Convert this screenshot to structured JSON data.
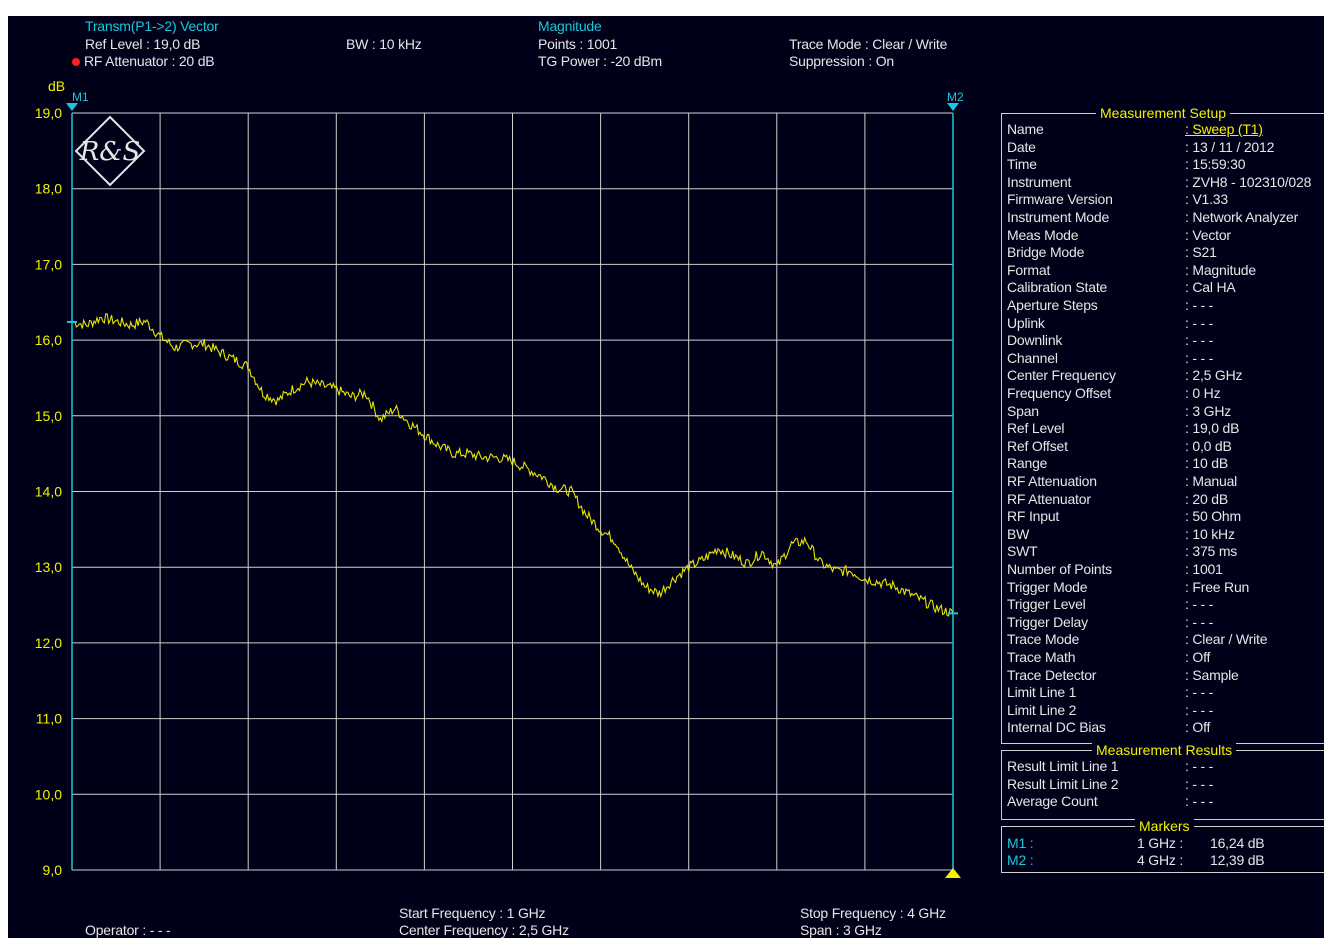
{
  "header": {
    "mode_title": "Transm(P1->2) Vector",
    "ref_level": "Ref Level      : 19,0 dB",
    "rf_attenuator": "RF Attenuator : 20   dB",
    "bw": "BW : 10 kHz",
    "format_title": "Magnitude",
    "points": "Points      : 1001",
    "tg_power": "TG Power : -20 dBm",
    "trace_mode": "Trace Mode : Clear / Write",
    "suppression": "Suppression : On"
  },
  "colors": {
    "background": "#000018",
    "grid": "#cfcfcf",
    "trace": "#e6e600",
    "marker": "#19c8dc",
    "accent_yellow": "#f2f200",
    "status_dot": "#ff1e1e"
  },
  "logo": {
    "name": "rohde-schwarz-logo",
    "text": "R&S"
  },
  "chart_data": {
    "type": "line",
    "ylabel": "dB",
    "ylim": [
      9.0,
      19.0
    ],
    "yticks": [
      9.0,
      10.0,
      11.0,
      12.0,
      13.0,
      14.0,
      15.0,
      16.0,
      17.0,
      18.0,
      19.0
    ],
    "ytick_labels": [
      "9,0",
      "10,0",
      "11,0",
      "12,0",
      "13,0",
      "14,0",
      "15,0",
      "16,0",
      "17,0",
      "18,0",
      "19,0"
    ],
    "xlim": [
      1.0,
      4.0
    ],
    "x_unit": "GHz",
    "grid": true,
    "series": [
      {
        "x": [
          1.0,
          1.05,
          1.1,
          1.15,
          1.2,
          1.25,
          1.3,
          1.35,
          1.4,
          1.45,
          1.5,
          1.55,
          1.6,
          1.65,
          1.7,
          1.75,
          1.8,
          1.85,
          1.9,
          1.95,
          2.0,
          2.05,
          2.1,
          2.15,
          2.2,
          2.25,
          2.3,
          2.35,
          2.4,
          2.45,
          2.5,
          2.55,
          2.6,
          2.65,
          2.7,
          2.75,
          2.8,
          2.85,
          2.9,
          2.95,
          3.0,
          3.05,
          3.1,
          3.15,
          3.2,
          3.25,
          3.3,
          3.35,
          3.4,
          3.45,
          3.5,
          3.55,
          3.6,
          3.65,
          3.7,
          3.75,
          3.8,
          3.85,
          3.9,
          3.95,
          4.0
        ],
        "y": [
          16.24,
          16.2,
          16.3,
          16.25,
          16.2,
          16.25,
          16.05,
          15.9,
          15.95,
          15.95,
          15.85,
          15.75,
          15.65,
          15.3,
          15.2,
          15.35,
          15.45,
          15.4,
          15.35,
          15.25,
          15.3,
          14.95,
          15.1,
          14.9,
          14.75,
          14.6,
          14.5,
          14.5,
          14.45,
          14.45,
          14.4,
          14.3,
          14.2,
          14.05,
          14.0,
          13.7,
          13.5,
          13.35,
          13.0,
          12.75,
          12.65,
          12.85,
          13.0,
          13.1,
          13.25,
          13.15,
          13.05,
          13.2,
          13.0,
          13.3,
          13.35,
          13.05,
          12.95,
          12.95,
          12.85,
          12.8,
          12.75,
          12.65,
          12.55,
          12.45,
          12.39
        ]
      }
    ],
    "markers": [
      {
        "label": "M1",
        "x": 1.0,
        "y": 16.24
      },
      {
        "label": "M2",
        "x": 4.0,
        "y": 12.39
      }
    ]
  },
  "setup": {
    "title": "Measurement Setup",
    "rows": [
      {
        "k": "Name",
        "v": ": Sweep (T1)"
      },
      {
        "k": "Date",
        "v": ": 13 / 11 / 2012"
      },
      {
        "k": "Time",
        "v": ": 15:59:30"
      },
      {
        "k": "Instrument",
        "v": ": ZVH8 - 102310/028"
      },
      {
        "k": "Firmware Version",
        "v": ": V1.33"
      },
      {
        "k": "Instrument Mode",
        "v": ": Network Analyzer"
      },
      {
        "k": "Meas Mode",
        "v": ": Vector"
      },
      {
        "k": "Bridge Mode",
        "v": ": S21"
      },
      {
        "k": "Format",
        "v": ": Magnitude"
      },
      {
        "k": "Calibration State",
        "v": ": Cal HA"
      },
      {
        "k": "Aperture Steps",
        "v": ": - - -"
      },
      {
        "k": "Uplink",
        "v": ": - - -"
      },
      {
        "k": "Downlink",
        "v": ": - - -"
      },
      {
        "k": "Channel",
        "v": ": - - -"
      },
      {
        "k": "Center Frequency",
        "v": ":    2,5  GHz"
      },
      {
        "k": "Frequency Offset",
        "v": ":      0    Hz"
      },
      {
        "k": "Span",
        "v": ":      3    GHz"
      },
      {
        "k": "Ref Level",
        "v": ":   19,0  dB"
      },
      {
        "k": "Ref Offset",
        "v": ":     0,0  dB"
      },
      {
        "k": "Range",
        "v": ":    10    dB"
      },
      {
        "k": "RF Attenuation",
        "v": ": Manual"
      },
      {
        "k": "RF Attenuator",
        "v": ":    20     dB"
      },
      {
        "k": "RF Input",
        "v": ": 50 Ohm"
      },
      {
        "k": "BW",
        "v": ":    10     kHz"
      },
      {
        "k": "SWT",
        "v": ":   375     ms"
      },
      {
        "k": "Number of Points",
        "v": ": 1001"
      },
      {
        "k": "Trigger Mode",
        "v": ": Free Run"
      },
      {
        "k": "Trigger Level",
        "v": ": - - -"
      },
      {
        "k": "Trigger Delay",
        "v": ": - - -"
      },
      {
        "k": "Trace Mode",
        "v": ": Clear / Write"
      },
      {
        "k": "Trace Math",
        "v": ": Off"
      },
      {
        "k": "Trace Detector",
        "v": ": Sample"
      },
      {
        "k": "Limit Line 1",
        "v": ": - - -"
      },
      {
        "k": "Limit Line 2",
        "v": ": - - -"
      },
      {
        "k": "Internal DC Bias",
        "v": ": Off"
      }
    ]
  },
  "results": {
    "title": "Measurement Results",
    "rows": [
      {
        "k": "Result Limit Line 1",
        "v": ": - - -"
      },
      {
        "k": "Result Limit Line 2",
        "v": ": - - -"
      },
      {
        "k": "Average Count",
        "v": ": - - -"
      }
    ]
  },
  "markers_panel": {
    "title": "Markers",
    "rows": [
      {
        "k": "M1 :",
        "freq": "1 GHz :",
        "val": "16,24 dB"
      },
      {
        "k": "M2 :",
        "freq": "4 GHz :",
        "val": "12,39 dB"
      }
    ]
  },
  "footer": {
    "operator": "Operator : - - -",
    "start_frequency": "Start Frequency    : 1    GHz",
    "center_frequency": "Center Frequency : 2,5 GHz",
    "stop_frequency": "Stop Frequency : 4 GHz",
    "span": "Span                       : 3 GHz"
  }
}
